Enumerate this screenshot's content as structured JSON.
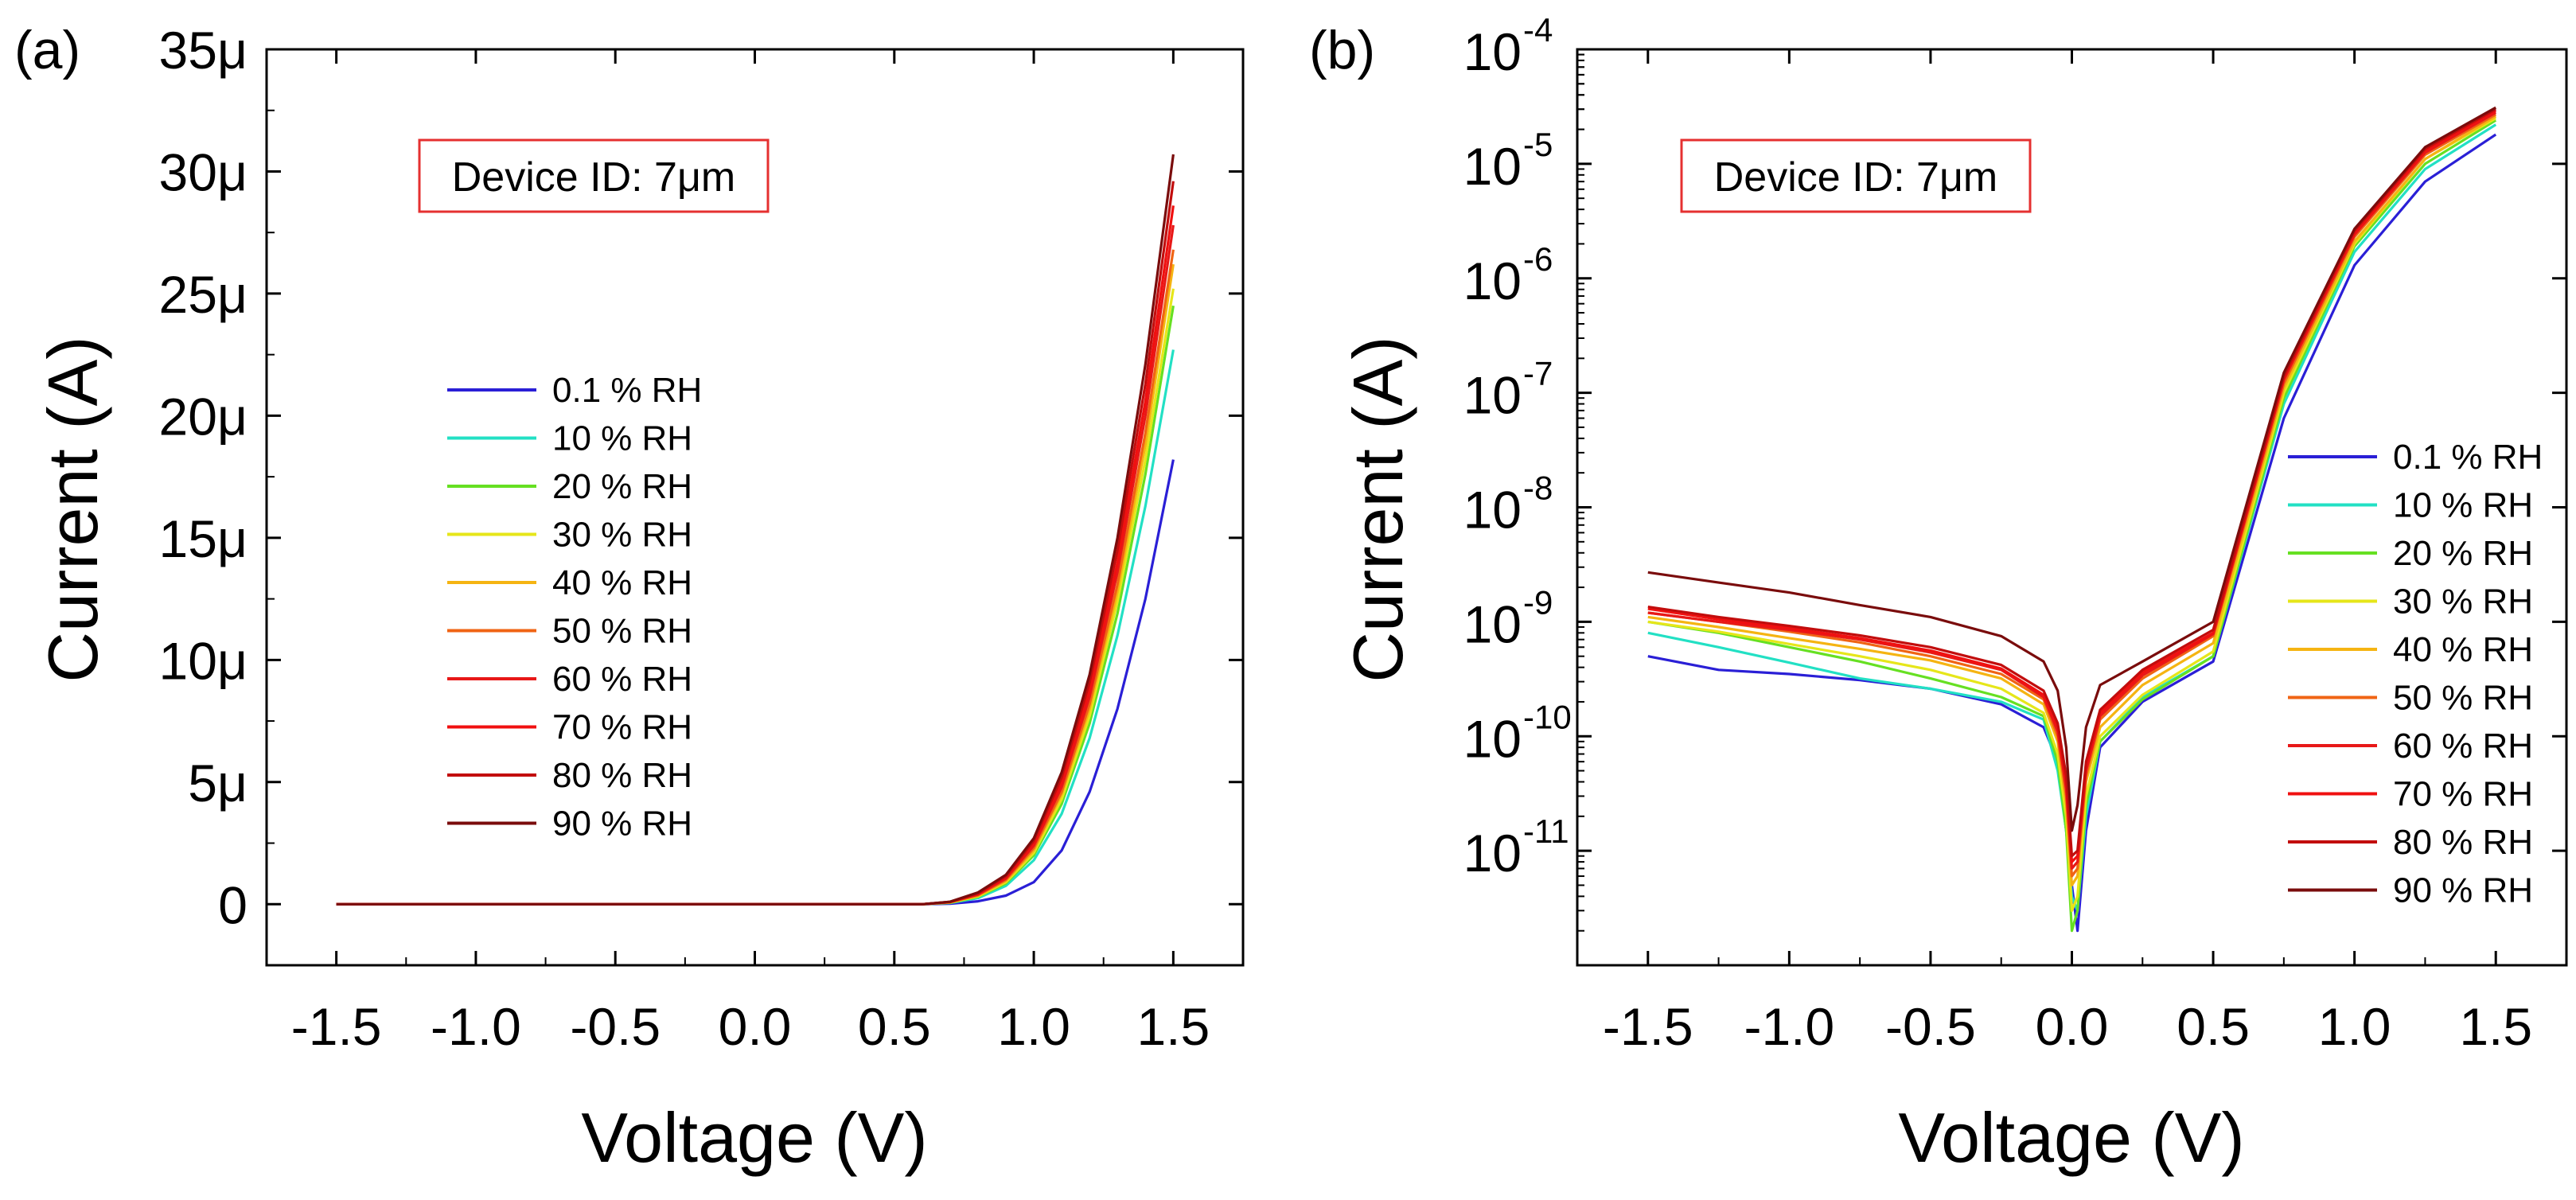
{
  "figure": {
    "panels": [
      "(a)",
      "(b)"
    ]
  },
  "chart_data": [
    {
      "type": "line",
      "panel_label": "(a)",
      "annotation": "Device ID: 7μm",
      "annotation_color": "#e53030",
      "xlabel": "Voltage (V)",
      "ylabel": "Current (A)",
      "xlim": [
        -1.75,
        1.75
      ],
      "ylim": [
        -2.5,
        35
      ],
      "xticks": [
        -1.5,
        -1.0,
        -0.5,
        0.0,
        0.5,
        1.0,
        1.5
      ],
      "xtick_labels": [
        "-1.5",
        "-1.0",
        "-0.5",
        "0.0",
        "0.5",
        "1.0",
        "1.5"
      ],
      "yticks": [
        0,
        5,
        10,
        15,
        20,
        25,
        30,
        35
      ],
      "ytick_labels": [
        "0",
        "5μ",
        "10μ",
        "15μ",
        "20μ",
        "25μ",
        "30μ",
        "35μ"
      ],
      "y_unit": "μA",
      "x": [
        -1.5,
        0.6,
        0.7,
        0.8,
        0.9,
        1.0,
        1.1,
        1.2,
        1.3,
        1.4,
        1.5
      ],
      "series": [
        {
          "name": "0.1 % RH",
          "color": "#2a1fd6",
          "values": [
            0,
            0,
            0.02,
            0.12,
            0.35,
            0.9,
            2.2,
            4.6,
            8.0,
            12.5,
            18.2
          ]
        },
        {
          "name": "10 % RH",
          "color": "#22e0c4",
          "values": [
            0,
            0,
            0.05,
            0.25,
            0.75,
            1.8,
            3.7,
            6.8,
            11.0,
            16.3,
            22.7
          ]
        },
        {
          "name": "20 % RH",
          "color": "#66e022",
          "values": [
            0,
            0,
            0.06,
            0.3,
            0.85,
            2.0,
            4.1,
            7.4,
            11.9,
            17.6,
            24.5
          ]
        },
        {
          "name": "30 % RH",
          "color": "#e6e61a",
          "values": [
            0,
            0,
            0.07,
            0.32,
            0.9,
            2.1,
            4.3,
            7.7,
            12.4,
            18.2,
            25.2
          ]
        },
        {
          "name": "40 % RH",
          "color": "#f5b412",
          "values": [
            0,
            0,
            0.08,
            0.35,
            0.95,
            2.2,
            4.5,
            8.0,
            12.8,
            18.8,
            26.2
          ]
        },
        {
          "name": "50 % RH",
          "color": "#f06414",
          "values": [
            0,
            0,
            0.08,
            0.37,
            1.0,
            2.3,
            4.6,
            8.2,
            13.1,
            19.3,
            26.8
          ]
        },
        {
          "name": "60 % RH",
          "color": "#e81818",
          "values": [
            0,
            0,
            0.09,
            0.4,
            1.05,
            2.4,
            4.8,
            8.5,
            13.6,
            20.0,
            27.8
          ]
        },
        {
          "name": "70 % RH",
          "color": "#f01010",
          "values": [
            0,
            0,
            0.09,
            0.42,
            1.1,
            2.5,
            5.0,
            8.8,
            14.0,
            20.6,
            28.6
          ]
        },
        {
          "name": "80 % RH",
          "color": "#c20d0d",
          "values": [
            0,
            0,
            0.1,
            0.45,
            1.15,
            2.6,
            5.2,
            9.1,
            14.5,
            21.3,
            29.6
          ]
        },
        {
          "name": "90 % RH",
          "color": "#7a0c0c",
          "values": [
            0,
            0,
            0.1,
            0.48,
            1.2,
            2.7,
            5.4,
            9.4,
            15.0,
            22.1,
            30.7
          ]
        }
      ]
    },
    {
      "type": "line",
      "panel_label": "(b)",
      "annotation": "Device ID: 7μm",
      "annotation_color": "#e53030",
      "xlabel": "Voltage (V)",
      "ylabel": "Current (A)",
      "y_scale": "log",
      "xlim": [
        -1.75,
        1.75
      ],
      "ylim_exp": [
        -12.0,
        -4.0
      ],
      "xticks": [
        -1.5,
        -1.0,
        -0.5,
        0.0,
        0.5,
        1.0,
        1.5
      ],
      "xtick_labels": [
        "-1.5",
        "-1.0",
        "-0.5",
        "0.0",
        "0.5",
        "1.0",
        "1.5"
      ],
      "ytick_exps": [
        -11,
        -10,
        -9,
        -8,
        -7,
        -6,
        -5,
        -4
      ],
      "ytick_base": "10",
      "x": [
        -1.5,
        -1.25,
        -1.0,
        -0.75,
        -0.5,
        -0.25,
        -0.1,
        -0.05,
        -0.02,
        0.0,
        0.02,
        0.05,
        0.1,
        0.25,
        0.5,
        0.75,
        1.0,
        1.25,
        1.5
      ],
      "series": [
        {
          "name": "0.1 % RH",
          "color": "#2a1fd6",
          "values": [
            5e-10,
            3.8e-10,
            3.5e-10,
            3.1e-10,
            2.6e-10,
            1.9e-10,
            1.2e-10,
            6e-11,
            1.5e-11,
            5e-12,
            2e-12,
            1.5e-11,
            8e-11,
            2e-10,
            4.5e-10,
            6e-08,
            1.3e-06,
            7e-06,
            1.8e-05
          ]
        },
        {
          "name": "10 % RH",
          "color": "#22e0c4",
          "values": [
            8e-10,
            6e-10,
            4.4e-10,
            3.2e-10,
            2.6e-10,
            2e-10,
            1.4e-10,
            5e-11,
            1.5e-11,
            4e-12,
            3e-12,
            2e-11,
            9e-11,
            2.2e-10,
            5e-10,
            8e-08,
            1.7e-06,
            9e-06,
            2.2e-05
          ]
        },
        {
          "name": "20 % RH",
          "color": "#66e022",
          "values": [
            1e-09,
            8e-10,
            6e-10,
            4.5e-10,
            3.2e-10,
            2.2e-10,
            1.5e-10,
            6e-11,
            1.5e-11,
            2e-12,
            3e-12,
            2.5e-11,
            9e-11,
            2.1e-10,
            5e-10,
            9e-08,
            1.9e-06,
            1e-05,
            2.4e-05
          ]
        },
        {
          "name": "30 % RH",
          "color": "#e6e61a",
          "values": [
            1e-09,
            8.2e-10,
            6.4e-10,
            5e-10,
            3.8e-10,
            2.6e-10,
            1.6e-10,
            7e-11,
            2e-11,
            3e-12,
            4e-12,
            3e-11,
            1e-10,
            2.3e-10,
            5.5e-10,
            1e-07,
            2e-06,
            1.1e-05,
            2.5e-05
          ]
        },
        {
          "name": "40 % RH",
          "color": "#f5b412",
          "values": [
            1.1e-09,
            9e-10,
            7.2e-10,
            5.8e-10,
            4.6e-10,
            3.2e-10,
            1.9e-10,
            9e-11,
            2.5e-11,
            5e-12,
            6e-12,
            4e-11,
            1.2e-10,
            2.8e-10,
            6.5e-10,
            1.1e-07,
            2.1e-06,
            1.1e-05,
            2.6e-05
          ]
        },
        {
          "name": "50 % RH",
          "color": "#f06414",
          "values": [
            1.2e-09,
            1e-09,
            8.2e-10,
            6.6e-10,
            5e-10,
            3.5e-10,
            2.1e-10,
            1e-10,
            3e-11,
            6e-12,
            7e-12,
            4.5e-11,
            1.4e-10,
            3.2e-10,
            7.5e-10,
            1.2e-07,
            2.3e-06,
            1.2e-05,
            2.7e-05
          ]
        },
        {
          "name": "60 % RH",
          "color": "#e81818",
          "values": [
            1.2e-09,
            1e-09,
            8.5e-10,
            7e-10,
            5.4e-10,
            3.8e-10,
            2.2e-10,
            1.1e-10,
            3.5e-11,
            7e-12,
            8e-12,
            5e-11,
            1.5e-10,
            3.4e-10,
            7.8e-10,
            1.3e-07,
            2.4e-06,
            1.25e-05,
            2.8e-05
          ]
        },
        {
          "name": "70 % RH",
          "color": "#f01010",
          "values": [
            1.3e-09,
            1.05e-09,
            8.8e-10,
            7.2e-10,
            5.6e-10,
            3.9e-10,
            2.3e-10,
            1.2e-10,
            4e-11,
            8e-12,
            9e-12,
            5.5e-11,
            1.6e-10,
            3.6e-10,
            8e-10,
            1.35e-07,
            2.5e-06,
            1.3e-05,
            2.9e-05
          ]
        },
        {
          "name": "80 % RH",
          "color": "#c20d0d",
          "values": [
            1.35e-09,
            1.1e-09,
            9.2e-10,
            7.6e-10,
            6e-10,
            4.2e-10,
            2.5e-10,
            1.3e-10,
            4.5e-11,
            9e-12,
            1e-11,
            6e-11,
            1.7e-10,
            3.8e-10,
            8.5e-10,
            1.4e-07,
            2.6e-06,
            1.35e-05,
            3e-05
          ]
        },
        {
          "name": "90 % RH",
          "color": "#7a0c0c",
          "values": [
            2.7e-09,
            2.2e-09,
            1.8e-09,
            1.4e-09,
            1.1e-09,
            7.5e-10,
            4.5e-10,
            2.5e-10,
            8e-11,
            1.5e-11,
            2.5e-11,
            1.2e-10,
            2.8e-10,
            4.5e-10,
            1e-09,
            1.5e-07,
            2.7e-06,
            1.4e-05,
            3.1e-05
          ]
        }
      ]
    }
  ]
}
